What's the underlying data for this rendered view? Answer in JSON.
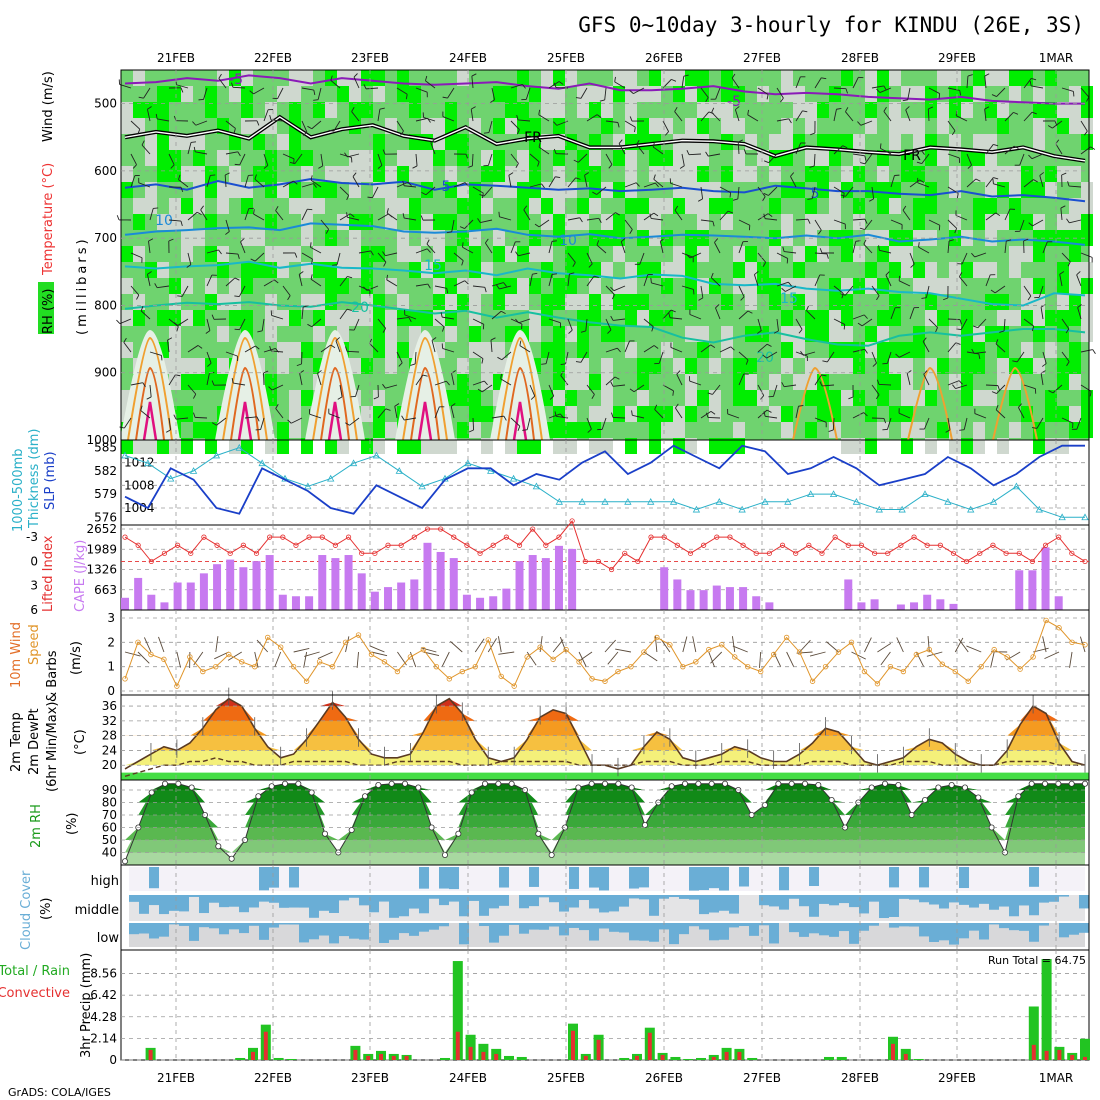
{
  "title": "GFS 0~10day 3-hourly for KINDU (26E, 3S)",
  "credit": "GrADS: COLA/IGES",
  "run_total_label": "Run Total = 64.75",
  "date_labels": [
    "21FEB",
    "22FEB",
    "23FEB",
    "24FEB",
    "25FEB",
    "26FEB",
    "27FEB",
    "28FEB",
    "29FEB",
    "1MAR"
  ],
  "panel_labels": {
    "upper": [
      "RH (%)",
      "Temperature (°C)",
      "Wind (m/s)",
      "(millibars)"
    ],
    "thickness": [
      "1000-500mb",
      "Thickness (dm)",
      "SLP (mb)"
    ],
    "cape": [
      "Lifted Index",
      "CAPE (J/kg)"
    ],
    "wind10m": [
      "10m Wind",
      "Speed",
      "& Barbs",
      "(m/s)"
    ],
    "temp2m": [
      "2m Temp",
      "2m DewPt",
      "(6hr Min/Max)",
      "(°C)"
    ],
    "rh2m": [
      "2m RH",
      "(%)"
    ],
    "cloud": [
      "Cloud Cover",
      "(%)"
    ],
    "precip": [
      "Total / Rain",
      "Convective",
      "3hr Precip (mm)"
    ]
  },
  "upper_contour_labels": [
    "-5",
    "-5",
    "FR",
    "FR",
    "5",
    "5",
    "10",
    "10",
    "15",
    "15",
    "20",
    "20"
  ],
  "cloud_levels": [
    "high",
    "middle",
    "low"
  ],
  "colors": {
    "rh_light": "#cfd8cf",
    "rh_mid": "#6fd36f",
    "rh_dark": "#00ee00",
    "rh_darkest": "#0aa30a",
    "thickness": "#2ab0c8",
    "slp": "#1a3fc8",
    "cape": "#c77af0",
    "li": "#e53030",
    "wind": "#e0952a",
    "cloud": "#6aaed6",
    "precip_total": "#22c422",
    "precip_conv": "#e53030"
  },
  "chart_data": [
    {
      "type": "heatmap",
      "name": "upper_air",
      "title": "",
      "ylabel": "(millibars)",
      "y_ticks": [
        500,
        600,
        700,
        800,
        900,
        1000
      ],
      "ylim": [
        1000,
        450
      ],
      "isotherms": [
        {
          "label": "-5",
          "pressure": [
            470,
            468,
            462,
            466,
            458,
            462,
            470,
            462,
            466,
            470,
            472,
            470,
            468,
            474,
            478,
            470,
            480,
            480,
            478,
            474,
            482,
            486,
            484,
            486,
            490,
            492,
            494,
            490,
            496,
            498,
            500,
            500
          ]
        },
        {
          "label": "FR",
          "pressure": [
            550,
            542,
            548,
            540,
            552,
            520,
            550,
            538,
            532,
            548,
            555,
            535,
            560,
            552,
            548,
            565,
            565,
            560,
            555,
            556,
            560,
            578,
            565,
            568,
            572,
            575,
            565,
            568,
            572,
            565,
            578,
            585
          ]
        },
        {
          "label": "5",
          "pressure": [
            625,
            620,
            628,
            615,
            625,
            620,
            612,
            618,
            620,
            616,
            628,
            620,
            622,
            625,
            628,
            626,
            630,
            628,
            625,
            630,
            632,
            622,
            626,
            630,
            630,
            634,
            636,
            630,
            638,
            636,
            640,
            645
          ]
        },
        {
          "label": "10",
          "pressure": [
            695,
            690,
            688,
            685,
            684,
            688,
            678,
            680,
            682,
            690,
            692,
            690,
            686,
            695,
            698,
            694,
            700,
            698,
            695,
            696,
            698,
            700,
            696,
            700,
            695,
            705,
            702,
            698,
            705,
            702,
            705,
            710
          ]
        },
        {
          "label": "15",
          "pressure": [
            742,
            745,
            742,
            740,
            735,
            744,
            738,
            744,
            745,
            748,
            752,
            748,
            755,
            745,
            752,
            755,
            760,
            754,
            756,
            768,
            770,
            768,
            775,
            778,
            775,
            780,
            782,
            790,
            798,
            800,
            782,
            785
          ]
        },
        {
          "label": "20",
          "pressure": [
            805,
            800,
            796,
            798,
            795,
            800,
            802,
            795,
            800,
            806,
            812,
            808,
            818,
            810,
            818,
            825,
            830,
            832,
            848,
            855,
            845,
            840,
            850,
            858,
            860,
            845,
            840,
            845,
            840,
            835,
            835,
            840
          ]
        }
      ]
    },
    {
      "type": "line",
      "name": "thickness_slp",
      "y_ticks_left": [
        576,
        579,
        582,
        585
      ],
      "y_ticks_right": [
        1004,
        1008,
        1012
      ],
      "series": [
        {
          "name": "Thickness (dm)",
          "values": [
            584,
            583,
            581,
            582,
            584,
            585,
            583,
            581,
            580,
            581,
            583,
            584,
            582,
            580,
            581,
            583,
            582,
            581,
            580,
            578,
            578,
            578,
            578,
            578,
            578,
            577,
            578,
            577,
            578,
            578,
            579,
            579,
            578,
            577,
            577,
            579,
            578,
            577,
            578,
            580,
            577,
            576,
            576
          ]
        },
        {
          "name": "SLP (mb)",
          "values": [
            1006,
            1004,
            1011,
            1009,
            1004,
            1003,
            1011,
            1009,
            1007,
            1004,
            1003,
            1008,
            1006,
            1004,
            1009,
            1011,
            1011,
            1008,
            1010,
            1009,
            1012,
            1014,
            1010,
            1012,
            1015,
            1013,
            1011,
            1015,
            1014,
            1010,
            1011,
            1013,
            1011,
            1008,
            1009,
            1010,
            1013,
            1011,
            1008,
            1010,
            1013,
            1015,
            1015
          ]
        }
      ],
      "ylim_left": [
        575,
        586
      ],
      "ylim_right": [
        1001,
        1016
      ]
    },
    {
      "type": "bar",
      "name": "cape_li",
      "y_ticks_left": [
        -3,
        0,
        3,
        6
      ],
      "y_ticks_right": [
        663,
        1326,
        1989,
        2652
      ],
      "series": [
        {
          "name": "CAPE (J/kg)",
          "values": [
            400,
            1050,
            500,
            250,
            900,
            900,
            1200,
            1500,
            1650,
            1400,
            1600,
            1800,
            500,
            450,
            450,
            1800,
            1700,
            1800,
            1200,
            600,
            750,
            900,
            1000,
            2200,
            1900,
            1700,
            500,
            400,
            450,
            700,
            1600,
            1800,
            1700,
            2100,
            2000,
            0,
            0,
            0,
            0,
            0,
            0,
            1400,
            1000,
            650,
            650,
            800,
            750,
            750,
            450,
            250,
            0,
            0,
            0,
            0,
            0,
            1000,
            250,
            350,
            0,
            180,
            250,
            500,
            350,
            200,
            0,
            0,
            0,
            0,
            1300,
            1300,
            2050,
            450,
            0,
            0
          ]
        },
        {
          "name": "Lifted Index",
          "values": [
            -3,
            -2,
            0,
            -1,
            -2,
            -1,
            -3,
            -2,
            -1,
            -2,
            -1,
            -3,
            -3,
            -2,
            -3,
            -3,
            -2,
            -3,
            -1,
            -1,
            -2,
            -2,
            -3,
            -4,
            -4,
            -3,
            -2,
            -1,
            -2,
            -3,
            -2,
            -4,
            -2,
            -3,
            -5,
            0,
            0,
            1,
            -1,
            0,
            -3,
            -3,
            -2,
            -1,
            -2,
            -3,
            -3,
            -2,
            -1,
            -1,
            -2,
            -1,
            -2,
            -1,
            -3,
            -2,
            -2,
            -1,
            -1,
            -2,
            -3,
            -2,
            -2,
            -1,
            0,
            -1,
            -2,
            -1,
            -1,
            0,
            -2,
            -3,
            -1,
            0
          ]
        }
      ],
      "ylim_left": [
        6,
        -4.5
      ],
      "ylim_right": [
        0,
        2652
      ]
    },
    {
      "type": "line",
      "name": "wind10m",
      "y_ticks": [
        0,
        1,
        2,
        3
      ],
      "series": [
        {
          "name": "Speed",
          "values": [
            0.5,
            2.0,
            1.5,
            1.3,
            0.2,
            1.4,
            0.8,
            1.0,
            1.5,
            1.2,
            1.0,
            2.2,
            1.8,
            1.0,
            0.4,
            1.2,
            1.0,
            2.0,
            2.3,
            1.5,
            1.2,
            0.8,
            1.4,
            1.7,
            1.0,
            0.5,
            0.8,
            1.0,
            2.1,
            0.6,
            0.2,
            1.4,
            1.8,
            1.3,
            1.7,
            1.2,
            0.5,
            0.4,
            0.8,
            1.0,
            1.6,
            2.2,
            1.9,
            1.0,
            1.2,
            1.7,
            1.9,
            1.4,
            1.0,
            0.8,
            1.5,
            2.2,
            1.6,
            0.4,
            1.0,
            1.6,
            2.0,
            0.8,
            0.3,
            1.0,
            0.8,
            1.5,
            1.7,
            1.1,
            0.8,
            0.4,
            1.0,
            1.7,
            1.4,
            0.9,
            1.4,
            2.9,
            2.6,
            2.0,
            1.9
          ]
        }
      ],
      "ylim": [
        0,
        3.2
      ]
    },
    {
      "type": "area",
      "name": "temp2m",
      "y_ticks": [
        20,
        24,
        28,
        32,
        36
      ],
      "series": [
        {
          "name": "2m Temp",
          "values": [
            19,
            21,
            23,
            25,
            24,
            26,
            30,
            35,
            38,
            36,
            30,
            25,
            22,
            23,
            27,
            32,
            37,
            33,
            27,
            23,
            22,
            22,
            23,
            29,
            36,
            38,
            34,
            27,
            22,
            21,
            22,
            27,
            33,
            35,
            34,
            27,
            20,
            20,
            19,
            20,
            25,
            29,
            27,
            22,
            21,
            22,
            23,
            25,
            24,
            22,
            21,
            21,
            23,
            26,
            30,
            29,
            25,
            21,
            20,
            21,
            22,
            25,
            27,
            26,
            23,
            21,
            20,
            20,
            24,
            31,
            36,
            34,
            26,
            21,
            20
          ]
        },
        {
          "name": "2m DewPt",
          "values": [
            17,
            18,
            19,
            20,
            20,
            21,
            21,
            22,
            21,
            21,
            20,
            20,
            20,
            21,
            21,
            21,
            21,
            21,
            20,
            20,
            20,
            21,
            21,
            21,
            21,
            21,
            20,
            20,
            20,
            21,
            21,
            21,
            21,
            21,
            21,
            20,
            20,
            20,
            20,
            20,
            21,
            21,
            21,
            20,
            20,
            20,
            21,
            21,
            21,
            20,
            20,
            20,
            20,
            21,
            21,
            21,
            20,
            20,
            20,
            20,
            21,
            21,
            21,
            20,
            20,
            20,
            20,
            20,
            21,
            21,
            21,
            21,
            20,
            20,
            20
          ]
        }
      ],
      "ylim": [
        16,
        39
      ]
    },
    {
      "type": "area",
      "name": "rh2m",
      "y_ticks": [
        40,
        50,
        60,
        70,
        80,
        90
      ],
      "series": [
        {
          "name": "2m RH",
          "values": [
            33,
            60,
            88,
            95,
            95,
            92,
            70,
            45,
            35,
            50,
            85,
            93,
            95,
            95,
            88,
            55,
            40,
            58,
            85,
            94,
            95,
            95,
            92,
            60,
            38,
            55,
            88,
            95,
            95,
            95,
            90,
            55,
            38,
            60,
            92,
            95,
            95,
            95,
            92,
            62,
            80,
            93,
            95,
            95,
            95,
            95,
            90,
            70,
            78,
            95,
            95,
            95,
            94,
            82,
            60,
            80,
            92,
            95,
            94,
            70,
            82,
            92,
            94,
            92,
            84,
            60,
            40,
            85,
            95,
            95,
            95,
            95,
            95
          ]
        }
      ],
      "ylim": [
        30,
        98
      ]
    },
    {
      "type": "heatmap",
      "name": "cloud_cover",
      "levels": [
        "high",
        "middle",
        "low"
      ]
    },
    {
      "type": "bar",
      "name": "precip",
      "y_ticks": [
        0,
        2.14,
        4.28,
        6.42,
        8.56
      ],
      "series": [
        {
          "name": "Total",
          "values": [
            0,
            0,
            1.2,
            0,
            0,
            0,
            0,
            0,
            0,
            0.2,
            1.2,
            3.5,
            0.2,
            0.1,
            0,
            0,
            0,
            0,
            1.4,
            0.6,
            0.9,
            0.6,
            0.5,
            0,
            0,
            0.2,
            9.8,
            2.5,
            1.6,
            1.1,
            0.4,
            0.3,
            0,
            0,
            0,
            3.6,
            0.6,
            2.5,
            0,
            0.2,
            0.6,
            3.2,
            0.7,
            0.3,
            0.1,
            0.2,
            0.5,
            1.2,
            1.1,
            0.2,
            0,
            0,
            0,
            0,
            0,
            0.3,
            0.3,
            0,
            0,
            0,
            2.3,
            1.1,
            0.1,
            0,
            0,
            0,
            0,
            0,
            0,
            0,
            0,
            5.3,
            10.0,
            1.3,
            0.7,
            2.1
          ]
        },
        {
          "name": "Convective",
          "values": [
            0,
            0,
            1.0,
            0,
            0,
            0,
            0,
            0,
            0,
            0,
            0.8,
            2.8,
            0,
            0,
            0,
            0,
            0,
            0,
            1.0,
            0.4,
            0.6,
            0.4,
            0.4,
            0,
            0,
            0,
            2.8,
            1.3,
            0.8,
            0.6,
            0,
            0,
            0,
            0,
            0,
            2.9,
            0.4,
            2.0,
            0,
            0,
            0.4,
            2.7,
            0.5,
            0,
            0,
            0,
            0.3,
            0.8,
            0.8,
            0,
            0,
            0,
            0,
            0,
            0,
            0,
            0,
            0,
            0,
            0,
            1.6,
            0.6,
            0,
            0,
            0,
            0,
            0,
            0,
            0,
            0,
            0,
            1.5,
            0.9,
            1.0,
            0.5,
            0.3
          ]
        }
      ],
      "ylim": [
        0,
        10.3
      ]
    }
  ]
}
